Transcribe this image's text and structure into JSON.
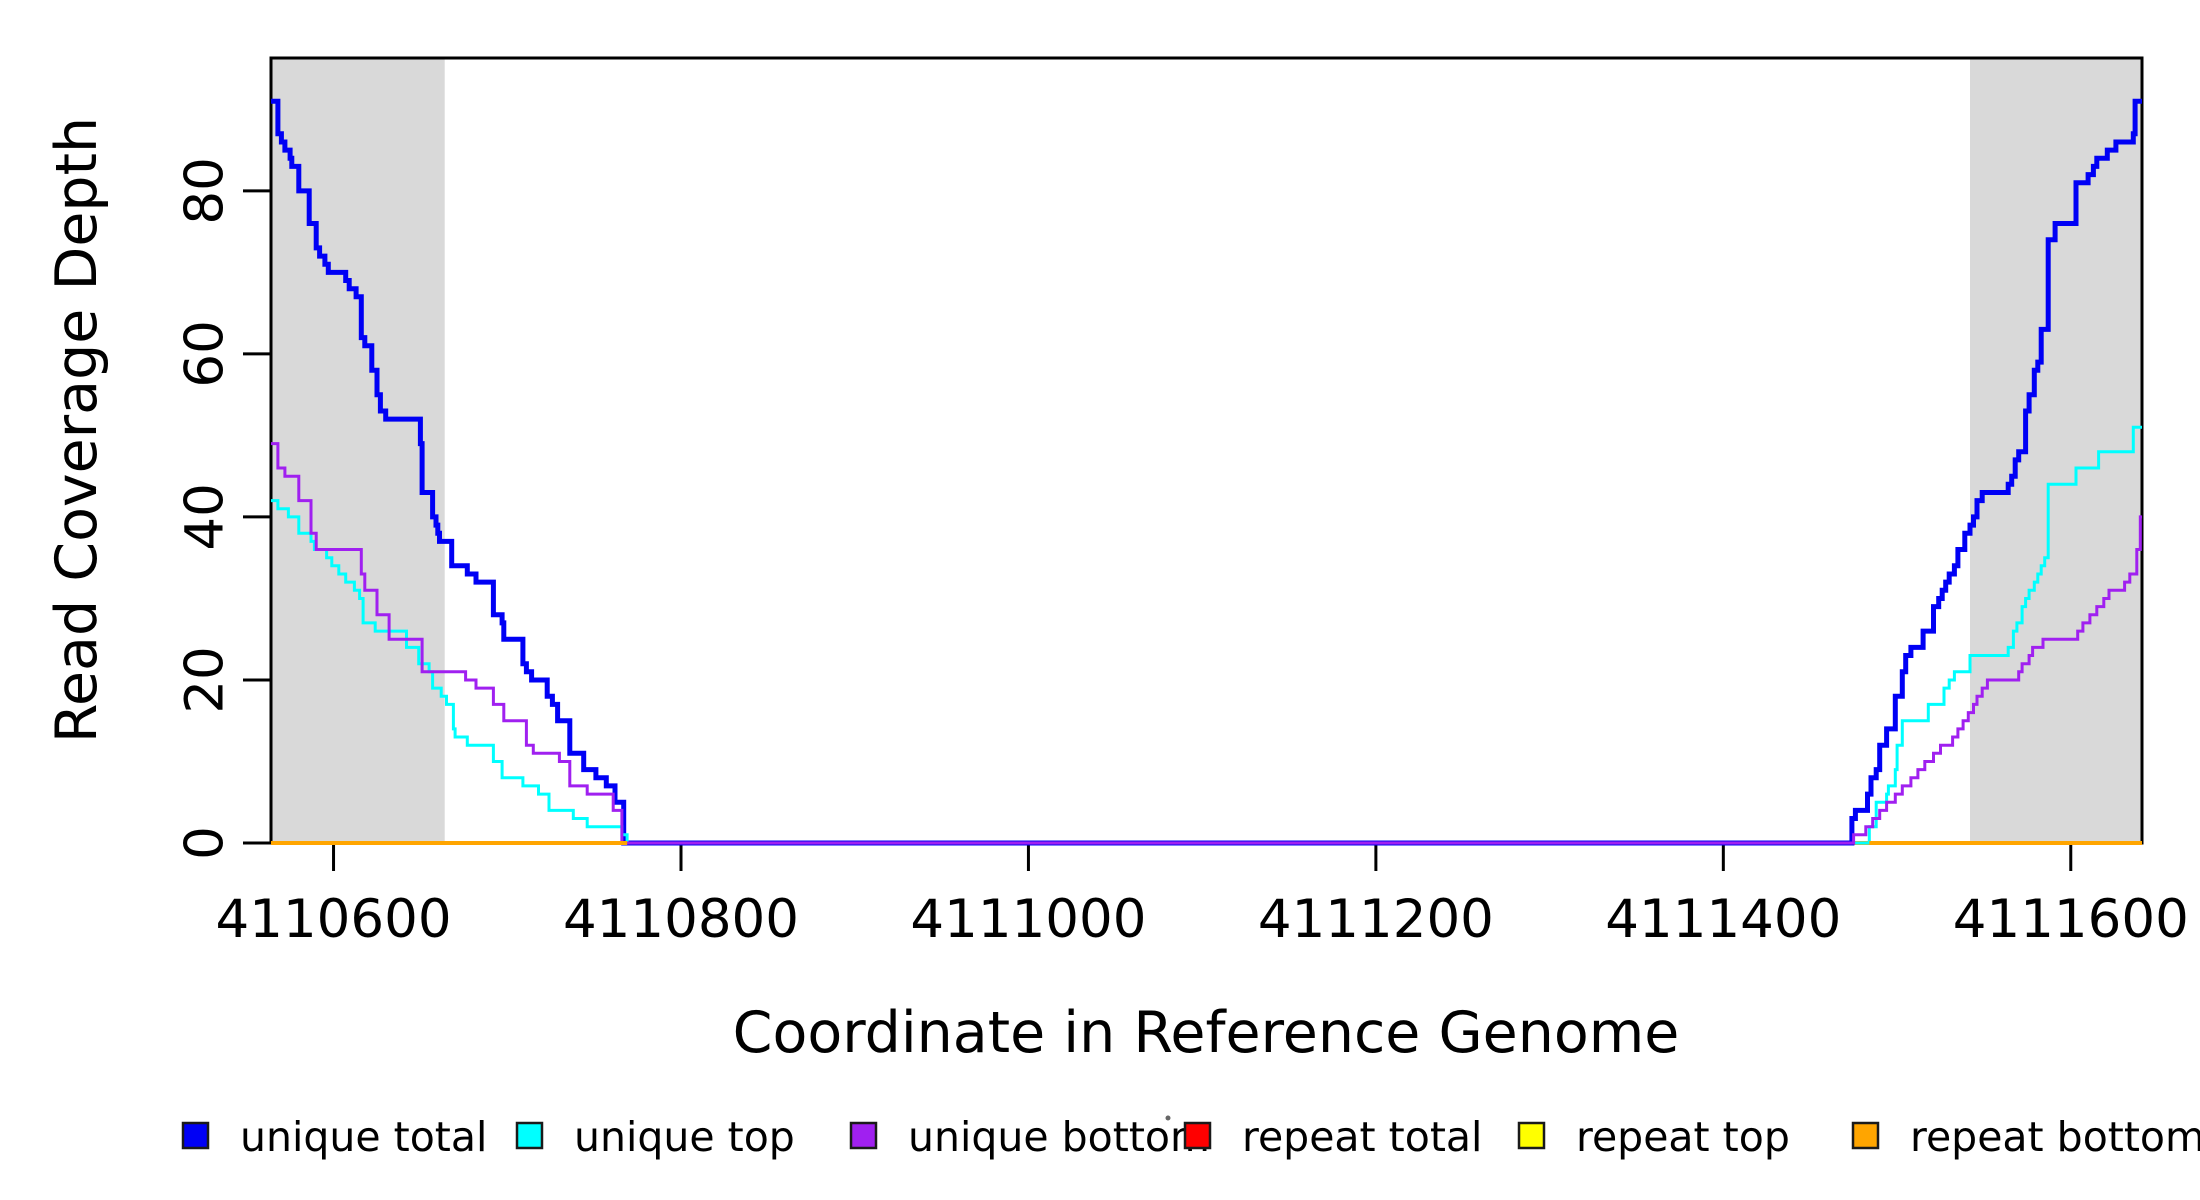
{
  "figure": {
    "background": "#FFFFFF",
    "text_color": "#000000",
    "axis_color": "#000000",
    "shade_color": "#D9D9D9"
  },
  "chart_data": {
    "type": "line",
    "line_style": "step",
    "title": "",
    "xlabel": "Coordinate in Reference Genome",
    "ylabel": "Read Coverage Depth",
    "x_range": [
      4110564,
      4111641
    ],
    "y_range": [
      0,
      96.3
    ],
    "x_ticks": [
      4110600,
      4110800,
      4111000,
      4111200,
      4111400,
      4111600
    ],
    "x_tick_labels": [
      "4110600",
      "4110800",
      "4111000",
      "4111200",
      "4111400",
      "4111600"
    ],
    "y_ticks": [
      0,
      20,
      40,
      60,
      80
    ],
    "y_tick_labels": [
      "0",
      "20",
      "40",
      "60",
      "80"
    ],
    "grid": false,
    "legend_position": "bottom",
    "shaded_regions": [
      {
        "x0": 4110564,
        "x1": 4110664
      },
      {
        "x0": 4111542,
        "x1": 4111641
      }
    ],
    "series": [
      {
        "name": "repeat total",
        "color": "#FF0000",
        "width": 3,
        "points": [
          [
            4110564,
            0
          ],
          [
            4111641,
            0
          ]
        ]
      },
      {
        "name": "repeat top",
        "color": "#FFFF00",
        "width": 3,
        "points": [
          [
            4110564,
            0
          ],
          [
            4111641,
            0
          ]
        ]
      },
      {
        "name": "repeat bottom",
        "color": "#FFA500",
        "width": 4,
        "points": [
          [
            4110564,
            0
          ],
          [
            4111641,
            0
          ]
        ]
      },
      {
        "name": "unique total",
        "color": "#0000F5",
        "width": 5,
        "points": [
          [
            4110564,
            91
          ],
          [
            4110568,
            87
          ],
          [
            4110570,
            86
          ],
          [
            4110572,
            85
          ],
          [
            4110575,
            84
          ],
          [
            4110576,
            83
          ],
          [
            4110580,
            80
          ],
          [
            4110586,
            76
          ],
          [
            4110590,
            73
          ],
          [
            4110592,
            72
          ],
          [
            4110595,
            71
          ],
          [
            4110597,
            70
          ],
          [
            4110607,
            69
          ],
          [
            4110609,
            68
          ],
          [
            4110613,
            67
          ],
          [
            4110616,
            62
          ],
          [
            4110618,
            61
          ],
          [
            4110622,
            58
          ],
          [
            4110625,
            55
          ],
          [
            4110627,
            53
          ],
          [
            4110630,
            52
          ],
          [
            4110650,
            49
          ],
          [
            4110651,
            43
          ],
          [
            4110657,
            40
          ],
          [
            4110659,
            39
          ],
          [
            4110660,
            38
          ],
          [
            4110661,
            37
          ],
          [
            4110668,
            34
          ],
          [
            4110677,
            33
          ],
          [
            4110682,
            32
          ],
          [
            4110692,
            28
          ],
          [
            4110697,
            27
          ],
          [
            4110698,
            25
          ],
          [
            4110709,
            22
          ],
          [
            4110711,
            21
          ],
          [
            4110714,
            20
          ],
          [
            4110723,
            18
          ],
          [
            4110726,
            17
          ],
          [
            4110729,
            15
          ],
          [
            4110736,
            11
          ],
          [
            4110744,
            9
          ],
          [
            4110751,
            8
          ],
          [
            4110757,
            7
          ],
          [
            4110762,
            5
          ],
          [
            4110767,
            0
          ],
          [
            4111474,
            3
          ],
          [
            4111476,
            4
          ],
          [
            4111483,
            6
          ],
          [
            4111485,
            8
          ],
          [
            4111488,
            9
          ],
          [
            4111490,
            12
          ],
          [
            4111494,
            14
          ],
          [
            4111499,
            18
          ],
          [
            4111503,
            21
          ],
          [
            4111505,
            23
          ],
          [
            4111508,
            24
          ],
          [
            4111515,
            26
          ],
          [
            4111521,
            29
          ],
          [
            4111524,
            30
          ],
          [
            4111526,
            31
          ],
          [
            4111528,
            32
          ],
          [
            4111530,
            33
          ],
          [
            4111533,
            34
          ],
          [
            4111535,
            36
          ],
          [
            4111539,
            38
          ],
          [
            4111542,
            39
          ],
          [
            4111544,
            40
          ],
          [
            4111546,
            42
          ],
          [
            4111549,
            43
          ],
          [
            4111564,
            44
          ],
          [
            4111566,
            45
          ],
          [
            4111568,
            47
          ],
          [
            4111570,
            48
          ],
          [
            4111574,
            53
          ],
          [
            4111576,
            55
          ],
          [
            4111579,
            58
          ],
          [
            4111581,
            59
          ],
          [
            4111583,
            63
          ],
          [
            4111587,
            74
          ],
          [
            4111591,
            76
          ],
          [
            4111603,
            81
          ],
          [
            4111610,
            82
          ],
          [
            4111613,
            83
          ],
          [
            4111615,
            84
          ],
          [
            4111621,
            85
          ],
          [
            4111626,
            86
          ],
          [
            4111636,
            87
          ],
          [
            4111637,
            91
          ]
        ]
      },
      {
        "name": "unique top",
        "color": "#00FFFF",
        "width": 3,
        "points": [
          [
            4110564,
            42
          ],
          [
            4110568,
            41
          ],
          [
            4110574,
            40
          ],
          [
            4110580,
            38
          ],
          [
            4110587,
            37
          ],
          [
            4110589,
            36
          ],
          [
            4110596,
            35
          ],
          [
            4110599,
            34
          ],
          [
            4110603,
            33
          ],
          [
            4110607,
            32
          ],
          [
            4110612,
            31
          ],
          [
            4110615,
            30
          ],
          [
            4110617,
            27
          ],
          [
            4110624,
            26
          ],
          [
            4110642,
            24
          ],
          [
            4110649,
            22
          ],
          [
            4110655,
            21
          ],
          [
            4110657,
            19
          ],
          [
            4110662,
            18
          ],
          [
            4110665,
            17
          ],
          [
            4110669,
            14
          ],
          [
            4110670,
            13
          ],
          [
            4110677,
            12
          ],
          [
            4110692,
            10
          ],
          [
            4110697,
            8
          ],
          [
            4110709,
            7
          ],
          [
            4110718,
            6
          ],
          [
            4110724,
            4
          ],
          [
            4110738,
            3
          ],
          [
            4110746,
            2
          ],
          [
            4110766,
            1
          ],
          [
            4110769,
            0
          ],
          [
            4111484,
            2
          ],
          [
            4111488,
            5
          ],
          [
            4111494,
            6
          ],
          [
            4111495,
            7
          ],
          [
            4111499,
            9
          ],
          [
            4111500,
            12
          ],
          [
            4111503,
            15
          ],
          [
            4111518,
            17
          ],
          [
            4111527,
            19
          ],
          [
            4111530,
            20
          ],
          [
            4111533,
            21
          ],
          [
            4111542,
            23
          ],
          [
            4111564,
            24
          ],
          [
            4111567,
            26
          ],
          [
            4111569,
            27
          ],
          [
            4111572,
            29
          ],
          [
            4111574,
            30
          ],
          [
            4111576,
            31
          ],
          [
            4111579,
            32
          ],
          [
            4111581,
            33
          ],
          [
            4111583,
            34
          ],
          [
            4111585,
            35
          ],
          [
            4111587,
            44
          ],
          [
            4111603,
            46
          ],
          [
            4111616,
            48
          ],
          [
            4111636,
            51
          ]
        ]
      },
      {
        "name": "unique bottom",
        "color": "#A020F0",
        "width": 3,
        "points": [
          [
            4110564,
            49
          ],
          [
            4110568,
            46
          ],
          [
            4110572,
            45
          ],
          [
            4110580,
            42
          ],
          [
            4110587,
            38
          ],
          [
            4110590,
            36
          ],
          [
            4110616,
            33
          ],
          [
            4110618,
            31
          ],
          [
            4110625,
            28
          ],
          [
            4110632,
            25
          ],
          [
            4110651,
            21
          ],
          [
            4110676,
            20
          ],
          [
            4110682,
            19
          ],
          [
            4110692,
            17
          ],
          [
            4110698,
            15
          ],
          [
            4110711,
            12
          ],
          [
            4110715,
            11
          ],
          [
            4110730,
            10
          ],
          [
            4110736,
            7
          ],
          [
            4110746,
            6
          ],
          [
            4110761,
            4
          ],
          [
            4110766,
            0
          ],
          [
            4111475,
            1
          ],
          [
            4111482,
            2
          ],
          [
            4111486,
            3
          ],
          [
            4111490,
            4
          ],
          [
            4111494,
            5
          ],
          [
            4111499,
            6
          ],
          [
            4111503,
            7
          ],
          [
            4111508,
            8
          ],
          [
            4111512,
            9
          ],
          [
            4111516,
            10
          ],
          [
            4111521,
            11
          ],
          [
            4111525,
            12
          ],
          [
            4111532,
            13
          ],
          [
            4111535,
            14
          ],
          [
            4111538,
            15
          ],
          [
            4111541,
            16
          ],
          [
            4111544,
            17
          ],
          [
            4111546,
            18
          ],
          [
            4111549,
            19
          ],
          [
            4111552,
            20
          ],
          [
            4111570,
            21
          ],
          [
            4111572,
            22
          ],
          [
            4111576,
            23
          ],
          [
            4111578,
            24
          ],
          [
            4111584,
            25
          ],
          [
            4111604,
            26
          ],
          [
            4111607,
            27
          ],
          [
            4111611,
            28
          ],
          [
            4111615,
            29
          ],
          [
            4111619,
            30
          ],
          [
            4111622,
            31
          ],
          [
            4111631,
            32
          ],
          [
            4111634,
            33
          ],
          [
            4111638,
            36
          ],
          [
            4111640,
            40
          ]
        ]
      }
    ],
    "zero_line_overlays": [
      {
        "color": "#FFA500",
        "width": 4,
        "x0": 4110564,
        "x1": 4110769
      },
      {
        "color": "#FFA500",
        "width": 4,
        "x0": 4111484,
        "x1": 4111641
      }
    ]
  },
  "legend": {
    "entries": [
      {
        "label": "unique total",
        "color": "#0000F5"
      },
      {
        "label": "unique top",
        "color": "#00FFFF"
      },
      {
        "label": "unique bottom",
        "color": "#A020F0"
      },
      {
        "label": "repeat total",
        "color": "#FF0000"
      },
      {
        "label": "repeat top",
        "color": "#FFFF00"
      },
      {
        "label": "repeat bottom",
        "color": "#FFA500"
      }
    ]
  }
}
